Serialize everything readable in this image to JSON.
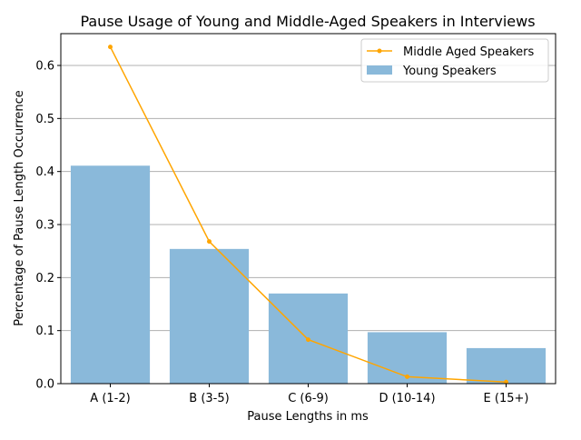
{
  "chart_data": {
    "type": "bar",
    "title": "Pause Usage of Young and Middle-Aged Speakers in Interviews",
    "xlabel": "Pause Lengths in ms",
    "ylabel": "Percentage of Pause Length Occurrence",
    "categories": [
      "A (1-2)",
      "B (3-5)",
      "C (6-9)",
      "D (10-14)",
      "E (15+)"
    ],
    "ylim": [
      0,
      0.66
    ],
    "yticks": [
      "0.0",
      "0.1",
      "0.2",
      "0.3",
      "0.4",
      "0.5",
      "0.6"
    ],
    "grid": "horizontal",
    "legend_position": "top-right",
    "series": [
      {
        "name": "Young Speakers",
        "type": "bar",
        "color": "#8ab9da",
        "values": [
          0.411,
          0.254,
          0.17,
          0.097,
          0.067
        ]
      },
      {
        "name": "Middle Aged Speakers",
        "type": "line",
        "color": "#ffa500",
        "values": [
          0.635,
          0.268,
          0.083,
          0.013,
          0.003
        ]
      }
    ]
  }
}
